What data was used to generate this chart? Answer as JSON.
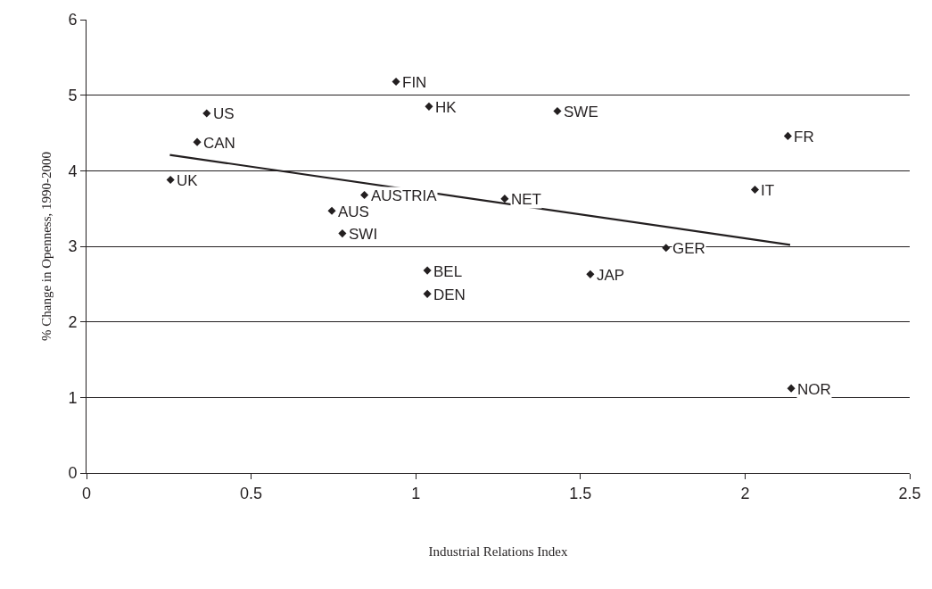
{
  "chart_data": {
    "type": "scatter",
    "xlabel": "Industrial Relations Index",
    "ylabel": "% Change in Openness, 1990-2000",
    "xlim": [
      0,
      2.5
    ],
    "ylim": [
      0,
      6
    ],
    "xticks": [
      0,
      0.5,
      1,
      1.5,
      2,
      2.5
    ],
    "yticks": [
      0,
      1,
      2,
      3,
      4,
      5,
      6
    ],
    "grid": "y",
    "series": [
      {
        "marker": "diamond",
        "color": "#231f20",
        "x": [
          0.94,
          0.365,
          1.04,
          1.43,
          0.336,
          2.13,
          0.255,
          0.844,
          2.03,
          0.745,
          1.27,
          0.777,
          1.76,
          1.035,
          1.53,
          1.035,
          2.14
        ],
        "values": [
          5.18,
          4.76,
          4.85,
          4.79,
          4.38,
          4.46,
          3.88,
          3.68,
          3.75,
          3.47,
          3.63,
          3.17,
          2.98,
          2.68,
          2.63,
          2.37,
          1.12
        ],
        "value_labels": [
          "FIN",
          "US",
          "HK",
          "SWE",
          "CAN",
          "FR",
          "UK",
          "AUSTRIA",
          "IT",
          "AUS",
          "NET",
          "SWI",
          "GER",
          "BEL",
          "JAP",
          "DEN",
          "NOR"
        ]
      },
      {
        "type": "line",
        "color": "#231f20",
        "x": [
          0.253,
          2.137
        ],
        "values": [
          4.21,
          3.02
        ]
      }
    ]
  }
}
